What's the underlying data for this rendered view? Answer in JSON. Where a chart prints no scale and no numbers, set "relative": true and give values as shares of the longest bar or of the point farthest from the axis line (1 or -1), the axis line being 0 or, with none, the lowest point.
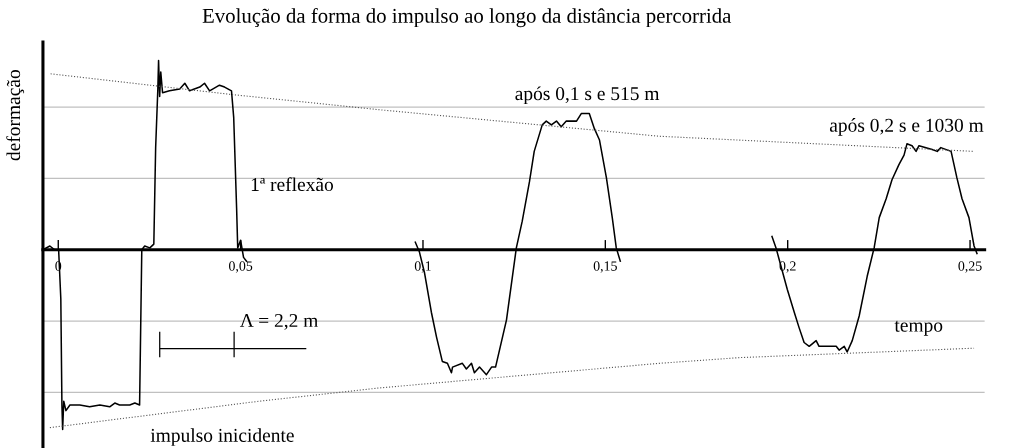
{
  "chart_data": {
    "type": "line",
    "title": "Evolução da forma do impulso ao longo da distância percorrida",
    "xlabel": "tempo",
    "ylabel": "deformação",
    "relative": true,
    "xlim": [
      -0.0042,
      0.254
    ],
    "xticks": [
      0,
      {
        "value": 0.05,
        "label": "0,05"
      },
      {
        "value": 0.1,
        "label": "0,1"
      },
      {
        "value": 0.15,
        "label": "0,15"
      },
      {
        "value": 0.2,
        "label": "0,2"
      },
      {
        "value": 0.25,
        "label": "0,25"
      }
    ],
    "grid": false,
    "legend": false,
    "ref_lines": [
      {
        "axis": "y",
        "value": 0.754,
        "label": null,
        "color": "#c0c0c0"
      },
      {
        "axis": "y",
        "value": 0.377,
        "label": null,
        "color": "#c0c0c0"
      },
      {
        "axis": "y",
        "value": -0.377,
        "label": null,
        "color": "#c0c0c0"
      },
      {
        "axis": "y",
        "value": -0.754,
        "label": null,
        "color": "#c0c0c0"
      }
    ],
    "annotations": [
      "1ª reflexão",
      "impulso inicidente",
      "após 0,1 s e 515 m",
      "após 0,2 s e 1030 m",
      "Λ = 2,2 m"
    ],
    "series": [
      {
        "color": "#000000",
        "line_style": "solid",
        "x": [
          -0.0042,
          -0.0023,
          -0.001,
          0.0001,
          0.0007,
          0.001,
          0.0012,
          0.0015,
          0.0021,
          0.0032,
          0.0059,
          0.0086,
          0.0114,
          0.0141,
          0.0155,
          0.0168,
          0.0196,
          0.021,
          0.0223,
          0.0229,
          0.0237,
          0.0251,
          0.0262,
          0.0267,
          0.0273,
          0.0275,
          0.0278,
          0.0281,
          0.0286,
          0.0305,
          0.0333,
          0.0347,
          0.036,
          0.0388,
          0.0401,
          0.0415,
          0.0442,
          0.0456,
          0.0475,
          0.0481,
          0.0489,
          0.0492,
          0.05,
          0.0508,
          0.0516
        ],
        "values": [
          0,
          0.02,
          0,
          0,
          -0.26,
          -0.82,
          -0.95,
          -0.8,
          -0.85,
          -0.82,
          -0.82,
          -0.83,
          -0.82,
          -0.83,
          -0.81,
          -0.82,
          -0.82,
          -0.81,
          -0.82,
          0,
          0.02,
          0.01,
          0.03,
          0.54,
          0.85,
          1.0,
          0.81,
          0.94,
          0.83,
          0.84,
          0.85,
          0.88,
          0.84,
          0.86,
          0.88,
          0.84,
          0.87,
          0.86,
          0.84,
          0.7,
          0.22,
          0.01,
          0.05,
          -0.04,
          -0.06
        ]
      },
      {
        "color": "#000000",
        "line_style": "solid",
        "x": [
          0.0979,
          0.099,
          0.1004,
          0.1023,
          0.1037,
          0.1053,
          0.1067,
          0.1078,
          0.1081,
          0.1108,
          0.1119,
          0.1133,
          0.1141,
          0.1155,
          0.1174,
          0.1188,
          0.1199,
          0.1229,
          0.1256,
          0.1272,
          0.1292,
          0.1305,
          0.1327,
          0.1338,
          0.1352,
          0.1366,
          0.1379,
          0.1393,
          0.1421,
          0.1434,
          0.1456,
          0.147,
          0.1484,
          0.1503,
          0.1519,
          0.153,
          0.1541
        ],
        "values": [
          0.04,
          -0.01,
          -0.12,
          -0.33,
          -0.46,
          -0.59,
          -0.6,
          -0.65,
          -0.62,
          -0.6,
          -0.63,
          -0.6,
          -0.65,
          -0.62,
          -0.66,
          -0.62,
          -0.62,
          -0.37,
          0.01,
          0.15,
          0.36,
          0.52,
          0.66,
          0.68,
          0.66,
          0.68,
          0.65,
          0.68,
          0.68,
          0.72,
          0.72,
          0.64,
          0.58,
          0.38,
          0.17,
          0.01,
          -0.06
        ]
      },
      {
        "color": "#000000",
        "line_style": "solid",
        "x": [
          0.1957,
          0.1968,
          0.1982,
          0.1999,
          0.2018,
          0.2031,
          0.2045,
          0.2059,
          0.2078,
          0.2086,
          0.2133,
          0.2141,
          0.2155,
          0.2163,
          0.2177,
          0.2196,
          0.2218,
          0.2237,
          0.2251,
          0.227,
          0.2286,
          0.2305,
          0.2319,
          0.2327,
          0.2341,
          0.2352,
          0.236,
          0.2396,
          0.241,
          0.242,
          0.2448,
          0.2464,
          0.2478,
          0.2497,
          0.2511,
          0.2519
        ],
        "values": [
          0.07,
          0.01,
          -0.09,
          -0.21,
          -0.33,
          -0.41,
          -0.49,
          -0.51,
          -0.48,
          -0.51,
          -0.51,
          -0.53,
          -0.51,
          -0.54,
          -0.48,
          -0.35,
          -0.14,
          0.01,
          0.17,
          0.27,
          0.37,
          0.45,
          0.5,
          0.56,
          0.55,
          0.52,
          0.55,
          0.53,
          0.52,
          0.54,
          0.52,
          0.38,
          0.27,
          0.17,
          0.02,
          -0.02
        ]
      },
      {
        "color": "#555555",
        "line_style": "dotted",
        "x": [
          -0.0021,
          0.0478,
          0.0881,
          0.1648,
          0.2511
        ],
        "values": [
          0.93,
          0.82,
          0.74,
          0.6,
          0.52
        ]
      },
      {
        "color": "#555555",
        "line_style": "dotted",
        "x": [
          -0.0023,
          0.0552,
          0.0881,
          0.1648,
          0.1867,
          0.2511
        ],
        "values": [
          -0.94,
          -0.8,
          -0.73,
          -0.6,
          -0.57,
          -0.52
        ]
      }
    ]
  }
}
